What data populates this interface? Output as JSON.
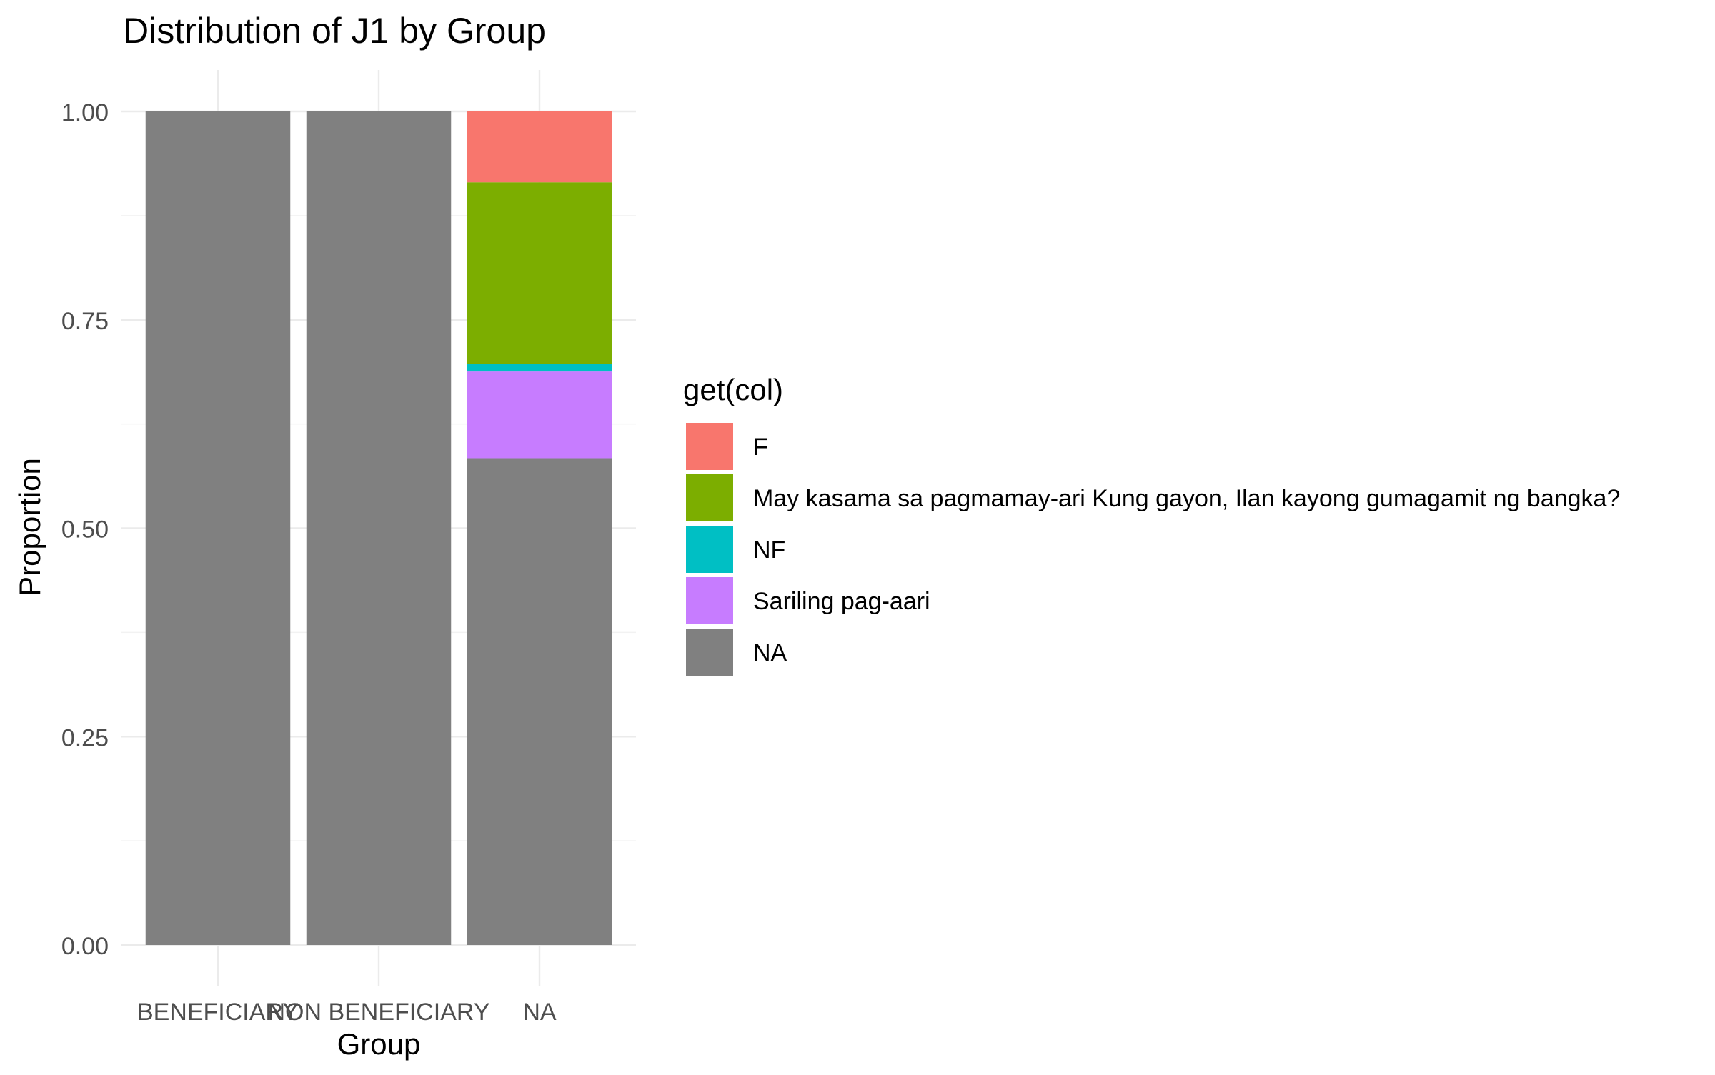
{
  "chart_data": {
    "type": "bar",
    "stacked": true,
    "title": "Distribution of J1 by Group",
    "xlabel": "Group",
    "ylabel": "Proportion",
    "categories": [
      "BENEFICIARY",
      "NON BENEFICIARY",
      "NA"
    ],
    "y_ticks": [
      "0.00",
      "0.25",
      "0.50",
      "0.75",
      "1.00"
    ],
    "ylim": [
      0,
      1
    ],
    "grid": true,
    "legend": {
      "title": "get(col)",
      "position": "right"
    },
    "series": [
      {
        "name": "NA",
        "color": "#808080",
        "values": [
          1.0,
          1.0,
          0.584
        ]
      },
      {
        "name": "Sariling pag-aari",
        "color": "#C77CFF",
        "values": [
          0,
          0,
          0.104
        ]
      },
      {
        "name": "NF",
        "color": "#00BFC4",
        "values": [
          0,
          0,
          0.009
        ]
      },
      {
        "name": "May kasama sa pagmamay-ari Kung gayon, Ilan kayong gumagamit ng bangka?",
        "color": "#7CAE00",
        "values": [
          0,
          0,
          0.218
        ]
      },
      {
        "name": "F",
        "color": "#F8766D",
        "values": [
          0,
          0,
          0.085
        ]
      }
    ],
    "legend_order": [
      "F",
      "May kasama sa pagmamay-ari Kung gayon, Ilan kayong gumagamit ng bangka?",
      "NF",
      "Sariling pag-aari",
      "NA"
    ]
  }
}
